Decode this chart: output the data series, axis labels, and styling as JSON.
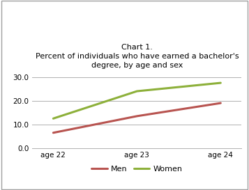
{
  "title_line1": "Chart 1.",
  "title_line2": "Percent of individuals who have earned a bachelor's",
  "title_line3": "degree, by age and sex",
  "x_labels": [
    "age 22",
    "age 23",
    "age 24"
  ],
  "x_values": [
    0,
    1,
    2
  ],
  "men_values": [
    6.5,
    13.5,
    19.0
  ],
  "women_values": [
    12.5,
    24.0,
    27.5
  ],
  "men_color": "#b85450",
  "women_color": "#8db03a",
  "ylim": [
    0,
    32
  ],
  "yticks": [
    0.0,
    10.0,
    20.0,
    30.0
  ],
  "legend_labels": [
    "Men",
    "Women"
  ],
  "bg_color": "#ffffff",
  "border_color": "#a0a0a0",
  "grid_color": "#b0b0b0",
  "title_fontsize": 8.0,
  "tick_fontsize": 7.5,
  "legend_fontsize": 8.0,
  "line_width": 2.2
}
